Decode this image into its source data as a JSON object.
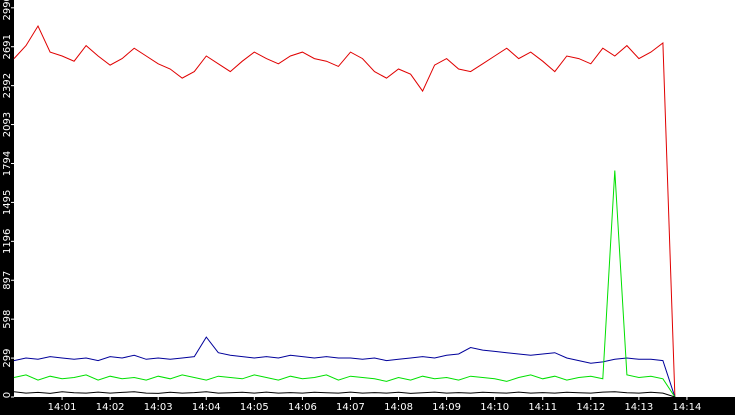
{
  "chart_data": {
    "type": "line",
    "x": [
      "14:00:00",
      "14:00:15",
      "14:00:30",
      "14:00:45",
      "14:01:00",
      "14:01:15",
      "14:01:30",
      "14:01:45",
      "14:02:00",
      "14:02:15",
      "14:02:30",
      "14:02:45",
      "14:03:00",
      "14:03:15",
      "14:03:30",
      "14:03:45",
      "14:04:00",
      "14:04:15",
      "14:04:30",
      "14:04:45",
      "14:05:00",
      "14:05:15",
      "14:05:30",
      "14:05:45",
      "14:06:00",
      "14:06:15",
      "14:06:30",
      "14:06:45",
      "14:07:00",
      "14:07:15",
      "14:07:30",
      "14:07:45",
      "14:08:00",
      "14:08:15",
      "14:08:30",
      "14:08:45",
      "14:09:00",
      "14:09:15",
      "14:09:30",
      "14:09:45",
      "14:10:00",
      "14:10:15",
      "14:10:30",
      "14:10:45",
      "14:11:00",
      "14:11:15",
      "14:11:30",
      "14:11:45",
      "14:12:00",
      "14:12:15",
      "14:12:30",
      "14:12:45",
      "14:13:00",
      "14:13:15",
      "14:13:30",
      "14:13:45"
    ],
    "series": [
      {
        "color": "#e00000",
        "values": [
          2600,
          2700,
          2850,
          2650,
          2620,
          2580,
          2700,
          2620,
          2550,
          2600,
          2680,
          2620,
          2560,
          2520,
          2450,
          2500,
          2620,
          2560,
          2500,
          2580,
          2650,
          2600,
          2560,
          2620,
          2650,
          2600,
          2580,
          2540,
          2650,
          2600,
          2500,
          2450,
          2520,
          2480,
          2350,
          2550,
          2600,
          2520,
          2500,
          2560,
          2620,
          2680,
          2600,
          2650,
          2580,
          2500,
          2620,
          2600,
          2560,
          2680,
          2620,
          2700,
          2600,
          2650,
          2720,
          0
        ]
      },
      {
        "color": "#00009a",
        "values": [
          280,
          300,
          290,
          310,
          300,
          290,
          300,
          280,
          310,
          300,
          320,
          290,
          300,
          290,
          300,
          310,
          460,
          340,
          320,
          310,
          300,
          310,
          300,
          320,
          310,
          300,
          310,
          300,
          300,
          290,
          300,
          280,
          290,
          300,
          310,
          300,
          320,
          330,
          380,
          360,
          350,
          340,
          330,
          320,
          330,
          340,
          300,
          280,
          260,
          270,
          290,
          300,
          290,
          290,
          280,
          0
        ]
      },
      {
        "color": "#00e000",
        "values": [
          150,
          170,
          130,
          160,
          140,
          150,
          170,
          130,
          160,
          140,
          150,
          130,
          160,
          140,
          170,
          150,
          130,
          160,
          150,
          140,
          170,
          150,
          130,
          160,
          140,
          150,
          170,
          130,
          160,
          150,
          140,
          120,
          150,
          130,
          160,
          140,
          150,
          130,
          160,
          150,
          140,
          120,
          150,
          170,
          140,
          160,
          130,
          150,
          160,
          140,
          1740,
          170,
          150,
          160,
          140,
          0
        ]
      },
      {
        "color": "#000000",
        "values": [
          40,
          30,
          35,
          28,
          40,
          32,
          30,
          38,
          30,
          35,
          40,
          30,
          28,
          36,
          30,
          34,
          40,
          30,
          32,
          36,
          30,
          38,
          30,
          34,
          30,
          36,
          32,
          30,
          38,
          30,
          34,
          30,
          36,
          28,
          32,
          38,
          30,
          34,
          30,
          36,
          32,
          30,
          38,
          30,
          34,
          30,
          36,
          32,
          30,
          38,
          40,
          32,
          30,
          36,
          30,
          0
        ]
      }
    ],
    "xlim": [
      "14:00",
      "14:15"
    ],
    "xticks": [
      "14:01",
      "14:02",
      "14:03",
      "14:04",
      "14:05",
      "14:06",
      "14:07",
      "14:08",
      "14:09",
      "14:10",
      "14:11",
      "14:12",
      "14:13",
      "14:14"
    ],
    "ylim": [
      0,
      3050
    ],
    "yticks": [
      0,
      299,
      598,
      897,
      1196,
      1495,
      1794,
      2093,
      2392,
      2691,
      2990
    ]
  }
}
